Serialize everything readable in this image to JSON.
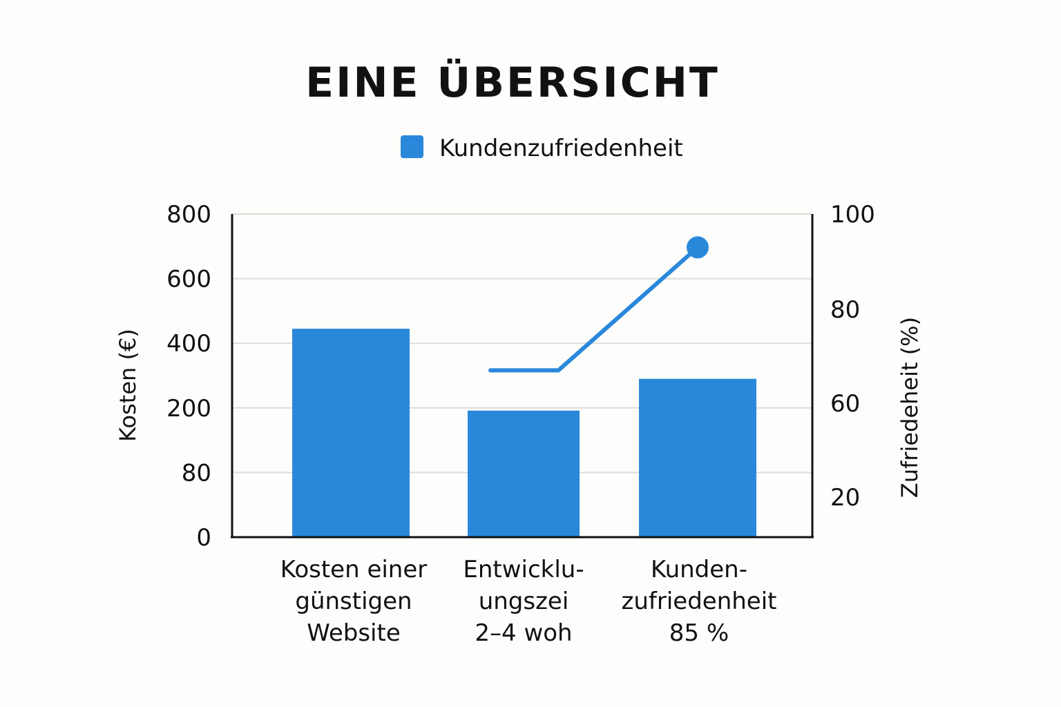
{
  "chart_data": {
    "type": "bar",
    "title": "EINE ÜBERSICHT",
    "legend": {
      "label": "Kundenzufriedenheit",
      "position": "top-center"
    },
    "categories": [
      [
        "Kosten einer",
        "günstigen",
        "Website"
      ],
      [
        "Entwicklu-",
        "ungszei",
        "2–4 woh"
      ],
      [
        "Kunden-",
        "zufriedenheit",
        "85 %"
      ]
    ],
    "y_left": {
      "label": "Kosten (€)",
      "tick_labels": [
        "0",
        "80",
        "200",
        "400",
        "600",
        "800"
      ]
    },
    "y_right": {
      "label": "Zufriedeheit (%)",
      "tick_labels": [
        "20",
        "60",
        "80",
        "100"
      ]
    },
    "series": [
      {
        "kind": "bar",
        "axis": "left",
        "values": [
          445,
          195,
          290
        ]
      },
      {
        "kind": "line",
        "axis": "right",
        "points": [
          [
            1,
            67
          ],
          [
            1.2,
            67
          ],
          [
            2,
            93
          ]
        ],
        "marker_last": true
      }
    ],
    "grid": true,
    "colors": {
      "bar": "#2a88db",
      "line": "#2a88db"
    }
  }
}
